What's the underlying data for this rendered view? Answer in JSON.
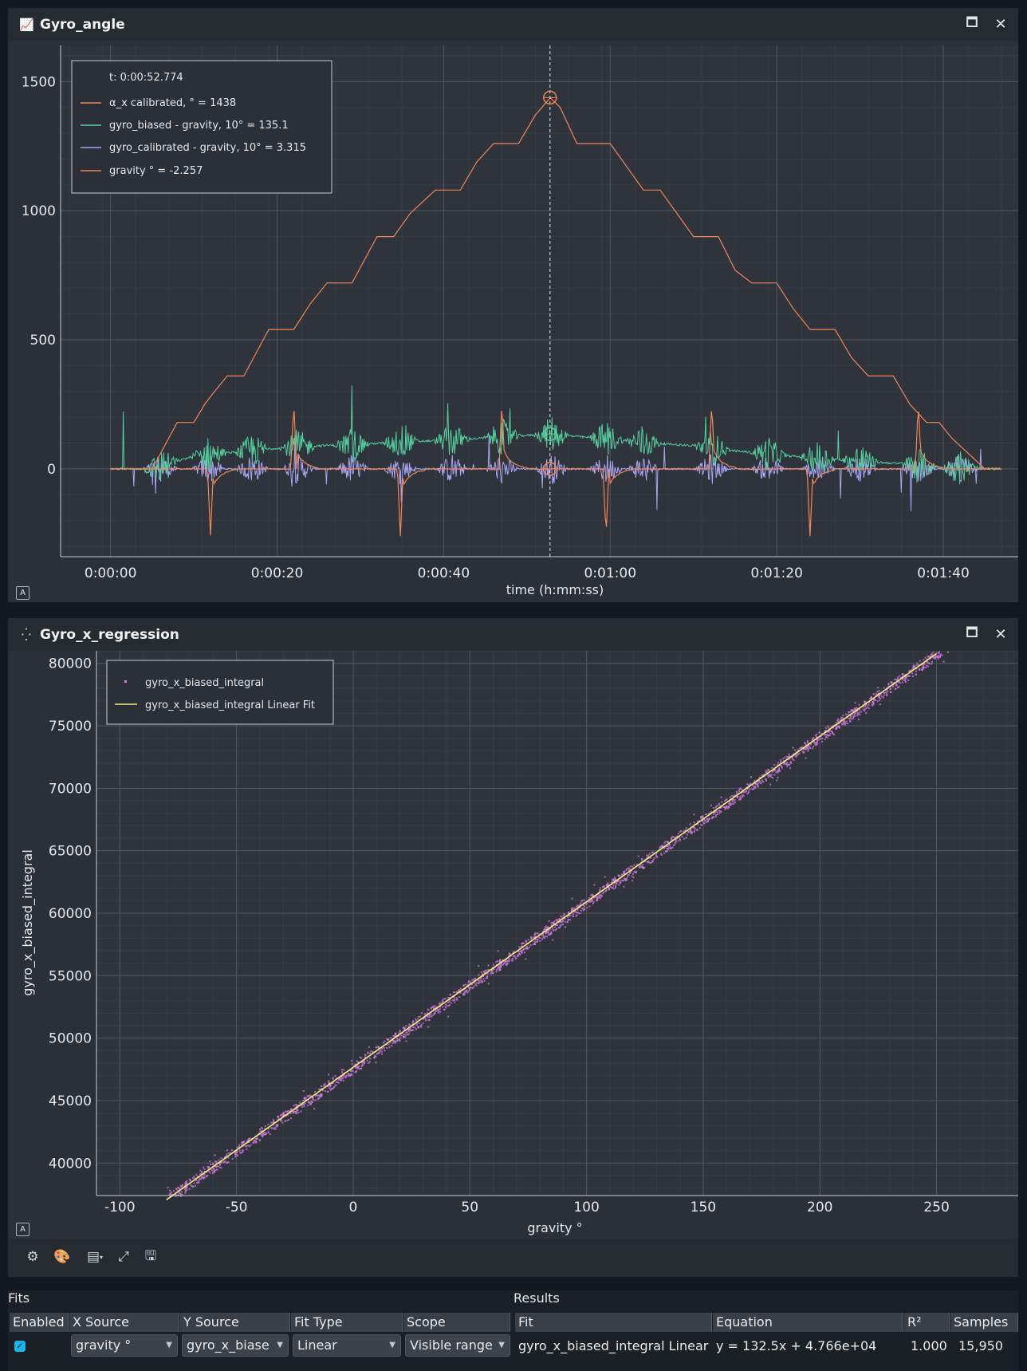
{
  "panel1": {
    "title": "Gyro_angle",
    "icon": "chart-line-icon",
    "legend": {
      "cursor": "t: 0:00:52.774",
      "items": [
        {
          "label": "α_x calibrated, ° = 1438",
          "color": "#f0865a"
        },
        {
          "label": "gyro_biased - gravity, 10° = 135.1",
          "color": "#56cf9e"
        },
        {
          "label": "gyro_calibrated - gravity, 10° = 3.315",
          "color": "#a9a5f2"
        },
        {
          "label": "gravity ° = -2.257",
          "color": "#f0865a"
        }
      ]
    },
    "auto_label": "A"
  },
  "chart_data": [
    {
      "type": "line",
      "xlabel": "time (h:mm:ss)",
      "x_tick_labels": [
        "0:00:00",
        "0:00:20",
        "0:00:40",
        "0:01:00",
        "0:01:20",
        "0:01:40"
      ],
      "y_ticks": [
        0,
        500,
        1000,
        1500
      ],
      "xlim_seconds": [
        -6,
        109
      ],
      "ylim": [
        -340,
        1640
      ],
      "cursor_x_seconds": 52.774,
      "grid": true,
      "legend_position": "top-left",
      "series": [
        {
          "name": "α_x calibrated, °",
          "color": "#f0865a",
          "x": [
            0,
            5,
            8,
            10,
            11.3,
            12,
            14,
            16,
            19,
            22,
            24,
            26,
            29,
            32,
            34,
            36,
            39,
            42,
            44,
            46,
            49,
            51,
            52.8,
            54,
            56,
            58,
            60,
            62,
            64,
            66,
            68,
            70,
            73,
            75,
            77,
            80,
            82,
            84,
            87,
            89,
            91,
            94,
            96,
            98,
            99.5,
            101,
            105,
            107
          ],
          "y": [
            0,
            0,
            180,
            180,
            250,
            280,
            360,
            360,
            540,
            540,
            640,
            720,
            720,
            900,
            900,
            990,
            1080,
            1080,
            1190,
            1260,
            1260,
            1370,
            1438,
            1400,
            1260,
            1260,
            1260,
            1170,
            1080,
            1080,
            990,
            900,
            900,
            770,
            720,
            720,
            620,
            540,
            540,
            430,
            360,
            360,
            250,
            180,
            180,
            120,
            0,
            0
          ]
        },
        {
          "name": "gyro_biased - gravity, 10°",
          "color": "#56cf9e",
          "x": [
            0,
            5,
            10,
            15,
            20,
            25,
            30,
            35,
            40,
            45,
            50,
            52.8,
            55,
            60,
            65,
            70,
            75,
            80,
            85,
            90,
            95,
            100,
            107
          ],
          "y": [
            0,
            0,
            50,
            65,
            80,
            90,
            95,
            105,
            110,
            120,
            130,
            135.1,
            128,
            115,
            100,
            90,
            70,
            55,
            40,
            30,
            20,
            5,
            0
          ]
        },
        {
          "name": "gyro_calibrated - gravity, 10°",
          "color": "#a9a5f2",
          "x": [
            0,
            52.8,
            107
          ],
          "y": [
            0,
            3.315,
            0
          ]
        },
        {
          "name": "gravity °",
          "color": "#f0865a",
          "x": [
            0,
            52.8,
            107
          ],
          "y": [
            0,
            -2.257,
            0
          ]
        }
      ]
    },
    {
      "type": "scatter",
      "xlabel": "gravity °",
      "ylabel": "gyro_x_biased_integral",
      "x_ticks": [
        -100,
        -50,
        0,
        50,
        100,
        150,
        200,
        250
      ],
      "y_ticks": [
        40000,
        45000,
        50000,
        55000,
        60000,
        65000,
        70000,
        75000,
        80000
      ],
      "xlim": [
        -110,
        285
      ],
      "ylim": [
        37400,
        81000
      ],
      "grid": true,
      "legend_position": "top-left",
      "series": [
        {
          "name": "gyro_x_biased_integral",
          "color": "#d77ae0",
          "x_range": [
            -80,
            258
          ]
        },
        {
          "name": "gyro_x_biased_integral Linear Fit",
          "color": "#eef07a",
          "slope": 132.5,
          "intercept": 47660
        }
      ]
    }
  ],
  "panel2": {
    "title": "Gyro_x_regression",
    "icon": "scatter-plot-icon",
    "legend": {
      "items": [
        {
          "label": "gyro_x_biased_integral",
          "color": "#d77ae0"
        },
        {
          "label": "gyro_x_biased_integral Linear Fit",
          "color": "#eef07a"
        }
      ]
    },
    "auto_label": "A"
  },
  "toolbar": {
    "icons": [
      "settings-icon",
      "palette-icon",
      "table-menu-icon",
      "fullscreen-icon",
      "save-icon"
    ]
  },
  "fits": {
    "title": "Fits",
    "columns": [
      "Enabled",
      "X Source",
      "Y Source",
      "Fit Type",
      "Scope"
    ],
    "row": {
      "enabled": true,
      "x_source": "gravity °",
      "y_source": "gyro_x_biase",
      "fit_type": "Linear",
      "scope": "Visible range"
    }
  },
  "results": {
    "title": "Results",
    "columns": [
      "Fit",
      "Equation",
      "R²",
      "Samples"
    ],
    "row": {
      "fit": "gyro_x_biased_integral Linear",
      "equation": "y = 132.5x + 4.766e+04",
      "r2": "1.000",
      "samples": "15,950"
    }
  }
}
